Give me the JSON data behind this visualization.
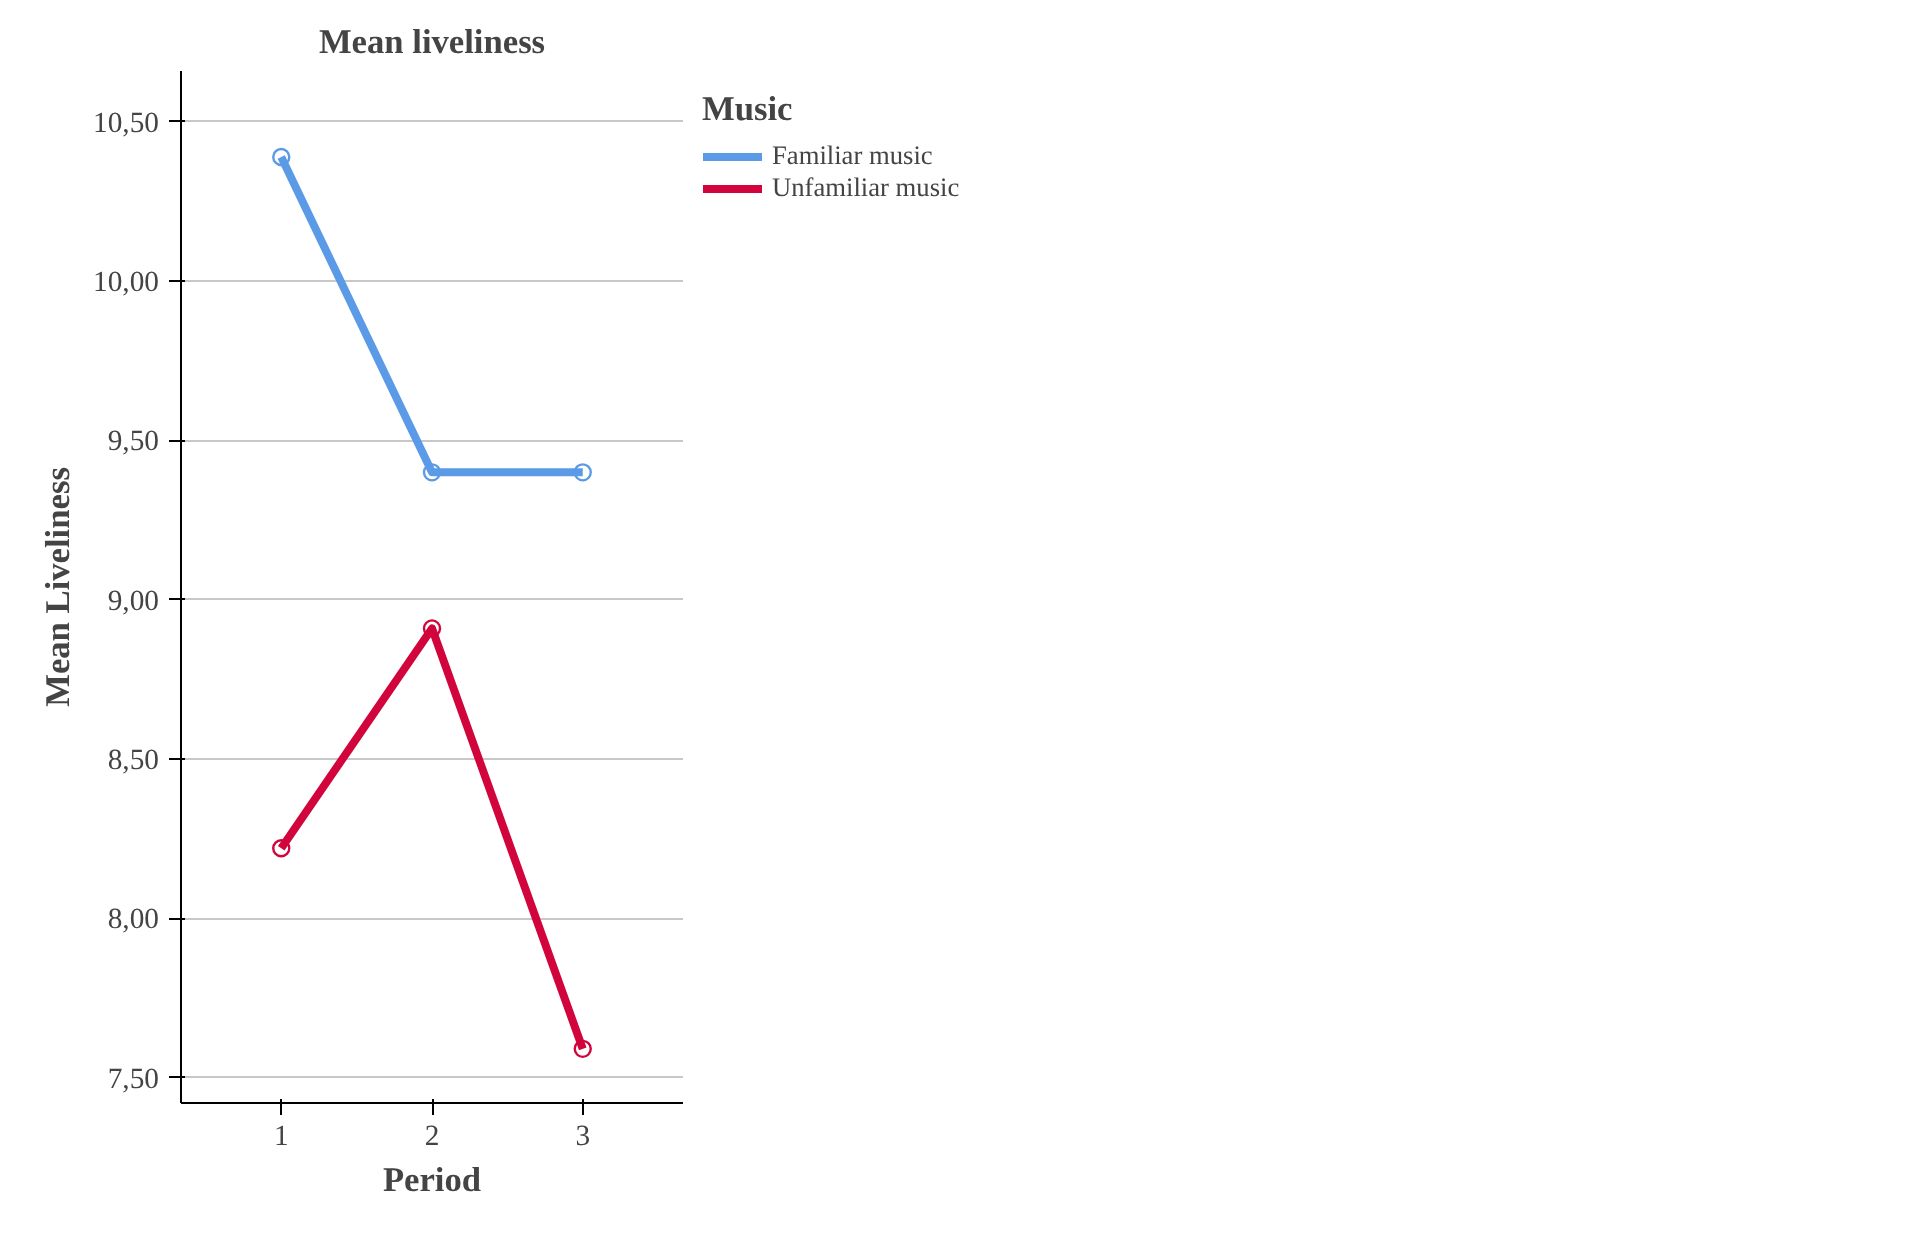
{
  "chart_data": {
    "type": "line",
    "title": "Mean liveliness",
    "xlabel": "Period",
    "ylabel": "Mean Liveliness",
    "legend_title": "Music",
    "categories": [
      "1",
      "2",
      "3"
    ],
    "series": [
      {
        "name": "Familiar music",
        "color": "#5b9ae6",
        "values": [
          10.39,
          9.4,
          9.4
        ]
      },
      {
        "name": "Unfamiliar music",
        "color": "#d1043c",
        "values": [
          8.22,
          8.91,
          7.59
        ]
      }
    ],
    "ylim": [
      7.42,
      10.66
    ],
    "yticks": [
      {
        "value": 7.5,
        "label": "7,50"
      },
      {
        "value": 8.0,
        "label": "8,00"
      },
      {
        "value": 8.5,
        "label": "8,50"
      },
      {
        "value": 9.0,
        "label": "9,00"
      },
      {
        "value": 9.5,
        "label": "9,50"
      },
      {
        "value": 10.0,
        "label": "10,00"
      },
      {
        "value": 10.5,
        "label": "10,50"
      }
    ],
    "grid": "y",
    "legend": "top right",
    "marker": "circle",
    "line_style": "solid"
  }
}
